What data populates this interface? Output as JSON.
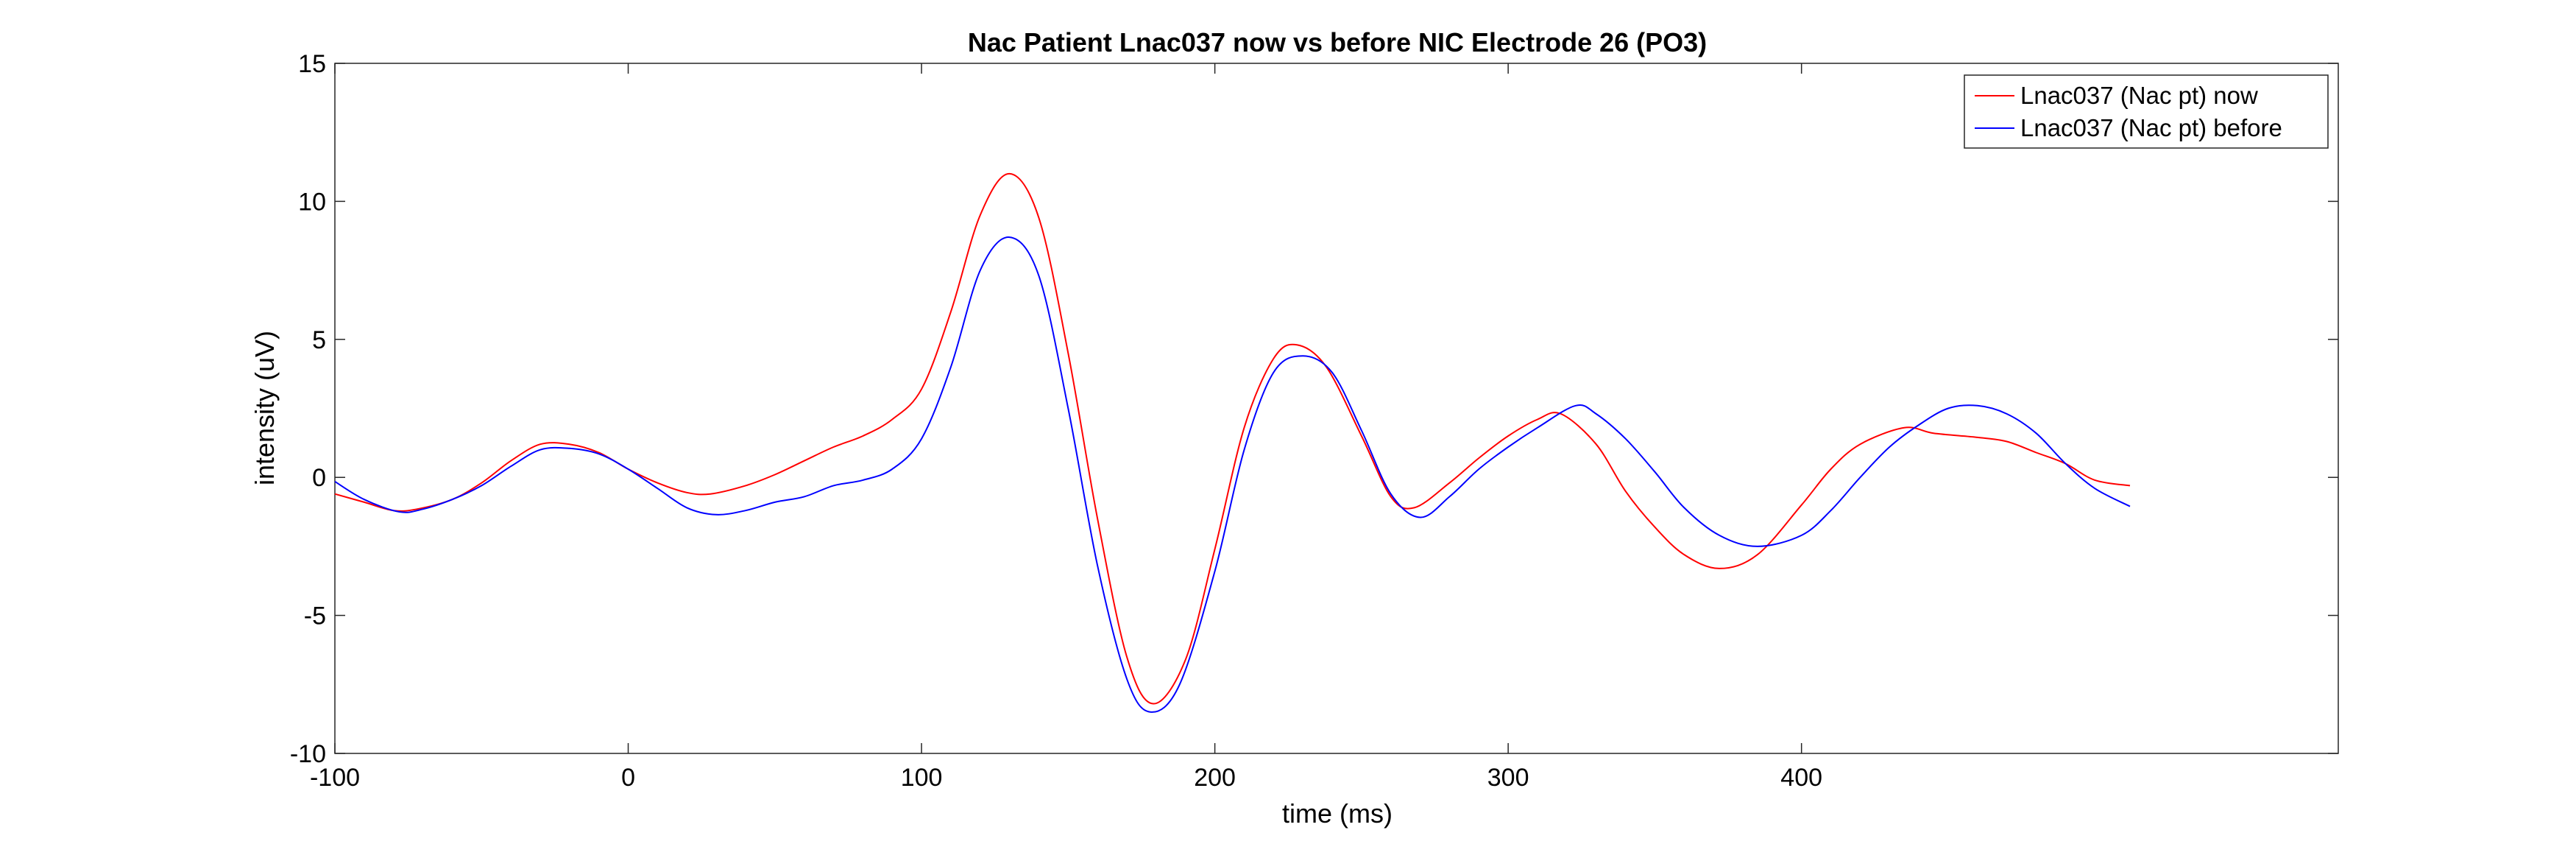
{
  "chart_data": {
    "type": "line",
    "title": "Nac Patient Lnac037 now vs before NIC Electrode 26 (PO3)",
    "xlabel": "time (ms)",
    "ylabel": "intensity (uV)",
    "xlim": [
      -100,
      583
    ],
    "ylim": [
      -10,
      15
    ],
    "xticks": [
      -100,
      0,
      100,
      200,
      300,
      400
    ],
    "yticks": [
      -10,
      -5,
      0,
      5,
      10,
      15
    ],
    "grid": false,
    "legend_position": "top-right",
    "series": [
      {
        "name": "Lnac037 (Nac pt) now",
        "color": "#ff0000",
        "points": [
          [
            -100,
            -0.6
          ],
          [
            -90,
            -0.9
          ],
          [
            -80,
            -1.2
          ],
          [
            -72,
            -1.15
          ],
          [
            -60,
            -0.8
          ],
          [
            -50,
            -0.2
          ],
          [
            -40,
            0.6
          ],
          [
            -30,
            1.2
          ],
          [
            -20,
            1.2
          ],
          [
            -10,
            0.9
          ],
          [
            0,
            0.3
          ],
          [
            10,
            -0.2
          ],
          [
            20,
            -0.55
          ],
          [
            28,
            -0.6
          ],
          [
            40,
            -0.3
          ],
          [
            50,
            0.1
          ],
          [
            60,
            0.6
          ],
          [
            70,
            1.1
          ],
          [
            80,
            1.5
          ],
          [
            90,
            2.1
          ],
          [
            100,
            3.2
          ],
          [
            110,
            6.0
          ],
          [
            120,
            9.5
          ],
          [
            130,
            11.0
          ],
          [
            140,
            9.4
          ],
          [
            150,
            4.5
          ],
          [
            160,
            -1.5
          ],
          [
            170,
            -6.5
          ],
          [
            179,
            -8.2
          ],
          [
            190,
            -6.6
          ],
          [
            200,
            -2.6
          ],
          [
            210,
            1.8
          ],
          [
            220,
            4.3
          ],
          [
            228,
            4.8
          ],
          [
            238,
            4.0
          ],
          [
            250,
            1.5
          ],
          [
            260,
            -0.7
          ],
          [
            268,
            -1.1
          ],
          [
            280,
            -0.2
          ],
          [
            290,
            0.7
          ],
          [
            300,
            1.5
          ],
          [
            310,
            2.1
          ],
          [
            318,
            2.3
          ],
          [
            330,
            1.2
          ],
          [
            340,
            -0.5
          ],
          [
            350,
            -1.8
          ],
          [
            360,
            -2.8
          ],
          [
            372,
            -3.3
          ],
          [
            385,
            -2.8
          ],
          [
            400,
            -1.0
          ],
          [
            410,
            0.3
          ],
          [
            420,
            1.2
          ],
          [
            435,
            1.8
          ],
          [
            445,
            1.6
          ],
          [
            460,
            1.45
          ],
          [
            470,
            1.3
          ],
          [
            480,
            0.9
          ],
          [
            490,
            0.5
          ],
          [
            500,
            -0.1
          ],
          [
            512,
            -0.3
          ]
        ]
      },
      {
        "name": "Lnac037 (Nac pt) before",
        "color": "#0000ff",
        "points": [
          [
            -100,
            -0.15
          ],
          [
            -90,
            -0.8
          ],
          [
            -78,
            -1.25
          ],
          [
            -70,
            -1.15
          ],
          [
            -60,
            -0.8
          ],
          [
            -50,
            -0.3
          ],
          [
            -40,
            0.4
          ],
          [
            -30,
            1.0
          ],
          [
            -20,
            1.05
          ],
          [
            -10,
            0.85
          ],
          [
            0,
            0.3
          ],
          [
            10,
            -0.4
          ],
          [
            20,
            -1.1
          ],
          [
            30,
            -1.35
          ],
          [
            40,
            -1.2
          ],
          [
            50,
            -0.9
          ],
          [
            60,
            -0.7
          ],
          [
            70,
            -0.3
          ],
          [
            80,
            -0.1
          ],
          [
            90,
            0.3
          ],
          [
            100,
            1.4
          ],
          [
            110,
            4.0
          ],
          [
            120,
            7.5
          ],
          [
            130,
            8.7
          ],
          [
            140,
            7.3
          ],
          [
            150,
            2.5
          ],
          [
            160,
            -3.2
          ],
          [
            170,
            -7.3
          ],
          [
            178,
            -8.5
          ],
          [
            188,
            -7.5
          ],
          [
            200,
            -3.4
          ],
          [
            210,
            1.0
          ],
          [
            220,
            3.8
          ],
          [
            230,
            4.4
          ],
          [
            240,
            3.8
          ],
          [
            250,
            1.7
          ],
          [
            260,
            -0.6
          ],
          [
            270,
            -1.45
          ],
          [
            280,
            -0.7
          ],
          [
            290,
            0.3
          ],
          [
            300,
            1.1
          ],
          [
            310,
            1.8
          ],
          [
            323,
            2.6
          ],
          [
            330,
            2.3
          ],
          [
            340,
            1.4
          ],
          [
            350,
            0.2
          ],
          [
            360,
            -1.1
          ],
          [
            372,
            -2.1
          ],
          [
            385,
            -2.5
          ],
          [
            400,
            -2.1
          ],
          [
            410,
            -1.2
          ],
          [
            420,
            0.0
          ],
          [
            430,
            1.1
          ],
          [
            440,
            1.9
          ],
          [
            450,
            2.5
          ],
          [
            460,
            2.6
          ],
          [
            470,
            2.3
          ],
          [
            480,
            1.6
          ],
          [
            490,
            0.5
          ],
          [
            500,
            -0.4
          ],
          [
            512,
            -1.05
          ]
        ]
      }
    ]
  }
}
